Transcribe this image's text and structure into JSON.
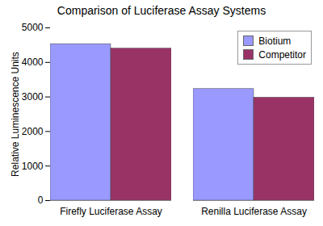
{
  "chart_data": {
    "type": "bar",
    "title": "Comparison of Luciferase Assay Systems",
    "y_label": "Relative Luminescence Units",
    "categories": [
      "Firefly Luciferase Assay",
      "Renilla Luciferase Assay"
    ],
    "series": [
      {
        "name": "Biotium",
        "color": "#9999ff",
        "values": [
          4530,
          3230
        ]
      },
      {
        "name": "Competitor",
        "color": "#993366",
        "values": [
          4400,
          2980
        ]
      }
    ],
    "ylim": [
      0,
      5000
    ],
    "yticks": [
      0,
      1000,
      2000,
      3000,
      4000,
      5000
    ],
    "grid": false,
    "legend": "top-right"
  }
}
